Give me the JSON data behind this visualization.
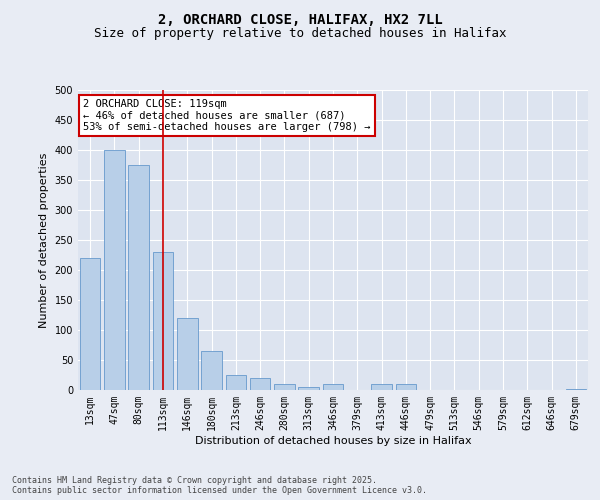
{
  "title": "2, ORCHARD CLOSE, HALIFAX, HX2 7LL",
  "subtitle": "Size of property relative to detached houses in Halifax",
  "xlabel": "Distribution of detached houses by size in Halifax",
  "ylabel": "Number of detached properties",
  "categories": [
    "13sqm",
    "47sqm",
    "80sqm",
    "113sqm",
    "146sqm",
    "180sqm",
    "213sqm",
    "246sqm",
    "280sqm",
    "313sqm",
    "346sqm",
    "379sqm",
    "413sqm",
    "446sqm",
    "479sqm",
    "513sqm",
    "546sqm",
    "579sqm",
    "612sqm",
    "646sqm",
    "679sqm"
  ],
  "values": [
    220,
    400,
    375,
    230,
    120,
    65,
    25,
    20,
    10,
    5,
    10,
    0,
    10,
    10,
    0,
    0,
    0,
    0,
    0,
    0,
    2
  ],
  "bar_color": "#b8cfe8",
  "bar_edge_color": "#6699cc",
  "plot_bg_color": "#dde4f0",
  "fig_bg_color": "#e8ecf4",
  "grid_color": "#ffffff",
  "vline_color": "#cc0000",
  "vline_x": 3,
  "annotation_text": "2 ORCHARD CLOSE: 119sqm\n← 46% of detached houses are smaller (687)\n53% of semi-detached houses are larger (798) →",
  "annotation_box_facecolor": "#ffffff",
  "annotation_box_edgecolor": "#cc0000",
  "ylim": [
    0,
    500
  ],
  "yticks": [
    0,
    50,
    100,
    150,
    200,
    250,
    300,
    350,
    400,
    450,
    500
  ],
  "footer_text": "Contains HM Land Registry data © Crown copyright and database right 2025.\nContains public sector information licensed under the Open Government Licence v3.0.",
  "title_fontsize": 10,
  "subtitle_fontsize": 9,
  "axis_label_fontsize": 8,
  "tick_fontsize": 7,
  "annotation_fontsize": 7.5,
  "footer_fontsize": 6
}
